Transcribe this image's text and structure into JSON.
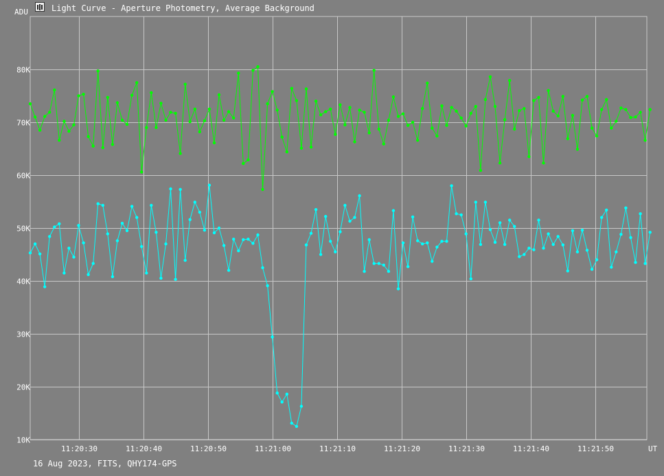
{
  "chart_data": {
    "type": "line",
    "title": "Light Curve - Aperture Photometry, Average Background",
    "ylabel": "ADU",
    "xlabel": "UT",
    "footer": "16 Aug 2023, FITS, QHY174-GPS",
    "ylim": [
      10000,
      90000
    ],
    "xlim_seconds_after": "11:20:22.5 to 11:21:58.0",
    "grid": true,
    "yticks": [
      {
        "value": 10000,
        "label": "10K"
      },
      {
        "value": 20000,
        "label": "20K"
      },
      {
        "value": 30000,
        "label": "30K"
      },
      {
        "value": 40000,
        "label": "40K"
      },
      {
        "value": 50000,
        "label": "50K"
      },
      {
        "value": 60000,
        "label": "60K"
      },
      {
        "value": 70000,
        "label": "70K"
      },
      {
        "value": 80000,
        "label": "80K"
      }
    ],
    "xticks": [
      "11:20:30",
      "11:20:40",
      "11:20:50",
      "11:21:00",
      "11:21:10",
      "11:21:20",
      "11:21:30",
      "11:21:40",
      "11:21:50"
    ],
    "x_start": "11:20:22.5",
    "x_step_seconds": 0.75,
    "series": [
      {
        "color": "#00ff00",
        "values": [
          73500,
          71000,
          68500,
          71100,
          71900,
          76100,
          66600,
          70200,
          68300,
          69500,
          75000,
          75300,
          67300,
          65500,
          79700,
          65200,
          74700,
          65800,
          73700,
          70400,
          69600,
          75100,
          77500,
          60600,
          69000,
          75600,
          69000,
          73600,
          70400,
          71900,
          71700,
          64100,
          77200,
          70100,
          72500,
          68200,
          70300,
          72500,
          66100,
          75200,
          70400,
          72000,
          70800,
          79300,
          62200,
          62900,
          79800,
          80500,
          57300,
          73500,
          75800,
          72300,
          67200,
          64400,
          76400,
          74100,
          65100,
          76300,
          65300,
          74000,
          71400,
          72000,
          72500,
          67700,
          73300,
          69500,
          72800,
          66300,
          72300,
          71900,
          68000,
          79800,
          68700,
          65900,
          70400,
          74800,
          71100,
          71600,
          69400,
          70000,
          66600,
          72600,
          77400,
          68900,
          67400,
          73100,
          69400,
          72800,
          72100,
          70800,
          69300,
          71700,
          73000,
          60900,
          74300,
          78600,
          73000,
          62300,
          70500,
          77900,
          68700,
          72200,
          72600,
          63500,
          74100,
          74700,
          62300,
          76000,
          72100,
          71200,
          74900,
          66900,
          71300,
          64900,
          74200,
          74900,
          68900,
          67400,
          72400,
          74300,
          68900,
          70200,
          72700,
          72400,
          70900,
          71000,
          71900,
          66600,
          72400
        ]
      },
      {
        "color": "#00ffff",
        "values": [
          45300,
          47000,
          45100,
          38900,
          48400,
          50200,
          50800,
          41500,
          46200,
          44500,
          50500,
          47200,
          41200,
          43300,
          54600,
          54300,
          48900,
          40800,
          47600,
          50900,
          49500,
          54100,
          52000,
          46500,
          41500,
          54300,
          49200,
          40500,
          47000,
          57400,
          40300,
          57300,
          43900,
          51600,
          54900,
          53000,
          49600,
          58100,
          49100,
          50000,
          46700,
          42000,
          47900,
          45700,
          47800,
          47900,
          47100,
          48700,
          42500,
          39100,
          29400,
          18800,
          17100,
          18600,
          13100,
          12500,
          16300,
          46800,
          49000,
          53500,
          45000,
          52200,
          47500,
          45500,
          49300,
          54300,
          51300,
          52000,
          56100,
          41800,
          47800,
          43300,
          43300,
          43000,
          41800,
          53300,
          38500,
          47200,
          42700,
          52100,
          47600,
          47000,
          47200,
          43700,
          46400,
          47500,
          47500,
          58000,
          52700,
          52500,
          48900,
          40400,
          54900,
          46900,
          54900,
          49700,
          47300,
          51000,
          46900,
          51500,
          50300,
          44600,
          45000,
          46200,
          45900,
          51500,
          46200,
          48900,
          46900,
          48400,
          46800,
          41900,
          49500,
          45500,
          49600,
          45800,
          42200,
          44000,
          52000,
          53400,
          42600,
          45500,
          48800,
          53800,
          48200,
          43500,
          52700,
          43300,
          49200
        ]
      }
    ]
  }
}
